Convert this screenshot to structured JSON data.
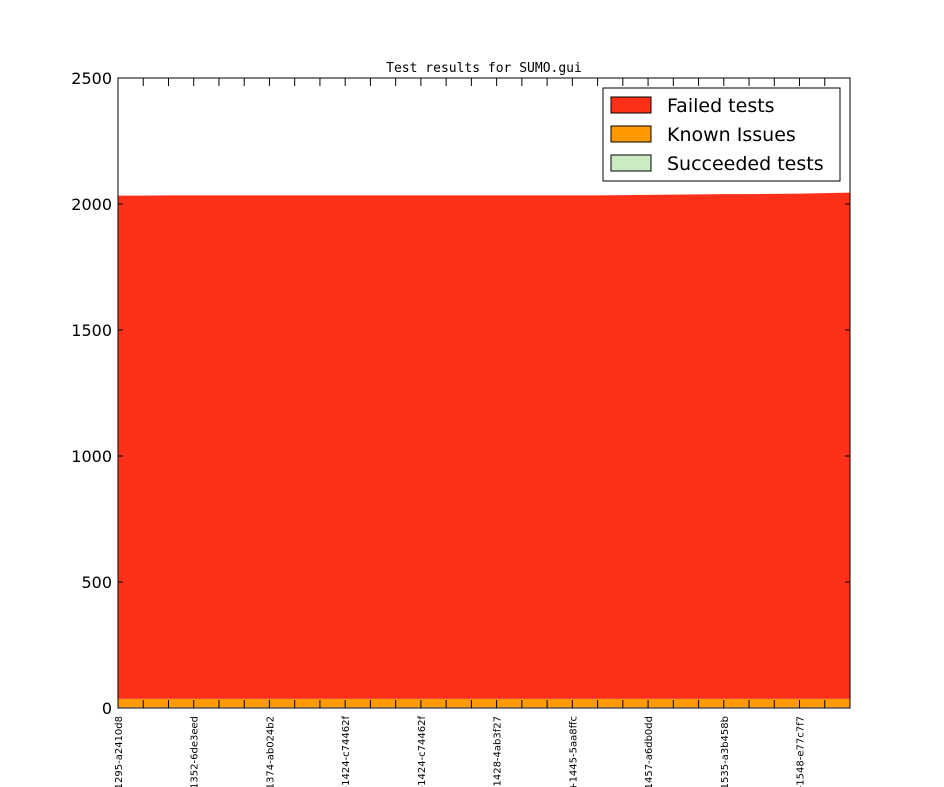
{
  "chart_data": {
    "type": "area",
    "title": "Test results for SUMO.gui",
    "xlabel": "",
    "ylabel": "",
    "ylim": [
      0,
      2500
    ],
    "yticks": [
      0,
      500,
      1000,
      1500,
      2000,
      2500
    ],
    "grid": false,
    "legend_position": "top-right",
    "x_tick_labels": [
      "1295-a2410d8",
      "1352-6de3eed",
      "1374-ab024b2",
      "-1424-c74462f",
      "-1424-c74462f",
      "1428-4ab3f27",
      "+1445-5aa8ffc",
      "1457-a6db0dd",
      "1535-a3b458b",
      "-1548-e77c7f7"
    ],
    "num_points": 30,
    "series": [
      {
        "name": "Succeeded tests",
        "color": "#ccebc5",
        "values": [
          3,
          3,
          3,
          3,
          3,
          3,
          3,
          3,
          3,
          3,
          3,
          3,
          3,
          3,
          3,
          3,
          3,
          3,
          3,
          3,
          3,
          3,
          3,
          3,
          3,
          3,
          3,
          3,
          3,
          3
        ]
      },
      {
        "name": "Known Issues",
        "color": "#ff9900",
        "values": [
          33,
          33,
          33,
          33,
          33,
          33,
          33,
          33,
          33,
          33,
          33,
          33,
          33,
          33,
          33,
          33,
          33,
          33,
          33,
          33,
          33,
          33,
          33,
          33,
          33,
          33,
          33,
          33,
          33,
          33
        ]
      },
      {
        "name": "Failed tests",
        "color": "#ff3019",
        "values": [
          1997,
          1997,
          1998,
          1998,
          1998,
          1998,
          1998,
          1998,
          1998,
          1998,
          1998,
          1998,
          1998,
          1998,
          1998,
          1998,
          1998,
          1998,
          1998,
          1998,
          1999,
          2000,
          2001,
          2002,
          2003,
          2003,
          2004,
          2005,
          2007,
          2009
        ]
      }
    ]
  }
}
